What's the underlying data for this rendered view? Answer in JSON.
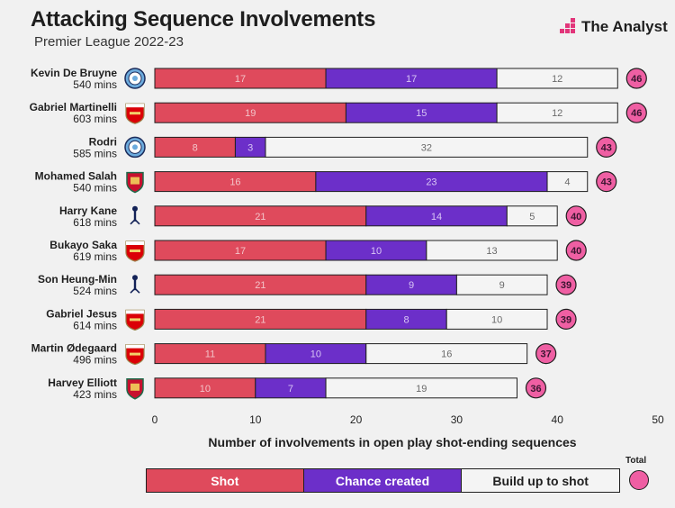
{
  "header": {
    "title": "Attacking Sequence Involvements",
    "subtitle": "Premier League 2022-23",
    "brand": "The Analyst"
  },
  "colors": {
    "shot": "#df4a5c",
    "chance": "#6c2fc9",
    "buildup": "#f4f4f4",
    "total": "#ef5fa3",
    "outline": "#1f1f1f",
    "brand_pink": "#e2357a"
  },
  "chart_data": {
    "type": "bar",
    "orientation": "horizontal",
    "stacked": true,
    "categories": [
      {
        "name": "Kevin De Bruyne",
        "mins": "540 mins",
        "club": "man-city"
      },
      {
        "name": "Gabriel Martinelli",
        "mins": "603 mins",
        "club": "arsenal"
      },
      {
        "name": "Rodri",
        "mins": "585 mins",
        "club": "man-city"
      },
      {
        "name": "Mohamed Salah",
        "mins": "540 mins",
        "club": "liverpool"
      },
      {
        "name": "Harry Kane",
        "mins": "618 mins",
        "club": "tottenham"
      },
      {
        "name": "Bukayo Saka",
        "mins": "619 mins",
        "club": "arsenal"
      },
      {
        "name": "Son Heung-Min",
        "mins": "524 mins",
        "club": "tottenham"
      },
      {
        "name": "Gabriel Jesus",
        "mins": "614 mins",
        "club": "arsenal"
      },
      {
        "name": "Martin Ødegaard",
        "mins": "496 mins",
        "club": "arsenal"
      },
      {
        "name": "Harvey Elliott",
        "mins": "423 mins",
        "club": "liverpool"
      }
    ],
    "series": [
      {
        "name": "Shot",
        "values": [
          17,
          19,
          8,
          16,
          21,
          17,
          21,
          21,
          11,
          10
        ]
      },
      {
        "name": "Chance created",
        "values": [
          17,
          15,
          3,
          23,
          14,
          10,
          9,
          8,
          10,
          7
        ]
      },
      {
        "name": "Build up to shot",
        "values": [
          12,
          12,
          32,
          4,
          5,
          13,
          9,
          10,
          16,
          19
        ]
      }
    ],
    "totals": [
      46,
      46,
      43,
      43,
      40,
      40,
      39,
      39,
      37,
      36
    ],
    "title": "Attacking Sequence Involvements",
    "subtitle": "Premier League 2022-23",
    "xlabel": "Number of involvements in open play shot-ending sequences",
    "xlim": [
      0,
      50
    ],
    "xticks": [
      0,
      10,
      20,
      30,
      40,
      50
    ],
    "grid": false,
    "legend": {
      "placement": "bottom",
      "items": [
        "Shot",
        "Chance created",
        "Build up to shot"
      ],
      "total_label": "Total"
    }
  }
}
